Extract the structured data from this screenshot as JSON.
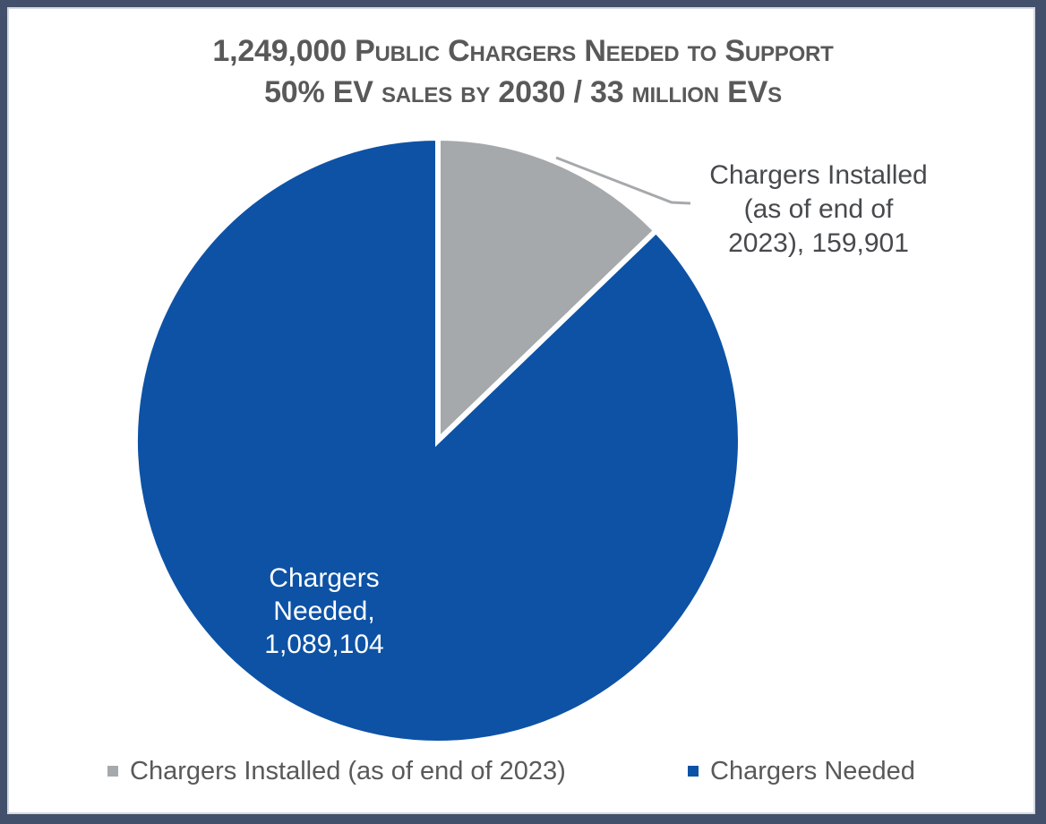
{
  "title": {
    "text": "1,249,000 Public Chargers Needed to Support\n50% EV sales by 2030 / 33 million EVs",
    "color": "#595959"
  },
  "chart_data": {
    "type": "pie",
    "title": "1,249,000 Public Chargers Needed to Support 50% EV sales by 2030 / 33 million EVs",
    "total": 1249005,
    "start_angle_deg": 0,
    "direction": "clockwise",
    "legend_position": "bottom",
    "slices": [
      {
        "name": "Chargers Installed (as of end of 2023)",
        "value": 159901,
        "color": "#A6A9AB",
        "data_label": "Chargers Installed\n(as of end of\n2023),  159,901",
        "label_style": "callout-outside"
      },
      {
        "name": "Chargers Needed",
        "value": 1089104,
        "color": "#0D52A5",
        "data_label": "Chargers\nNeeded,\n1,089,104",
        "label_style": "inside-white"
      }
    ]
  },
  "legend": {
    "items": [
      {
        "label": "Chargers Installed (as of end of 2023)",
        "color": "#A6A9AB"
      },
      {
        "label": "Chargers Needed",
        "color": "#0D52A5"
      }
    ],
    "text_color": "#595959"
  },
  "frame": {
    "border_color": "#42506B",
    "inner_line_color": "#D6D9E0",
    "background": "#FFFFFF"
  }
}
